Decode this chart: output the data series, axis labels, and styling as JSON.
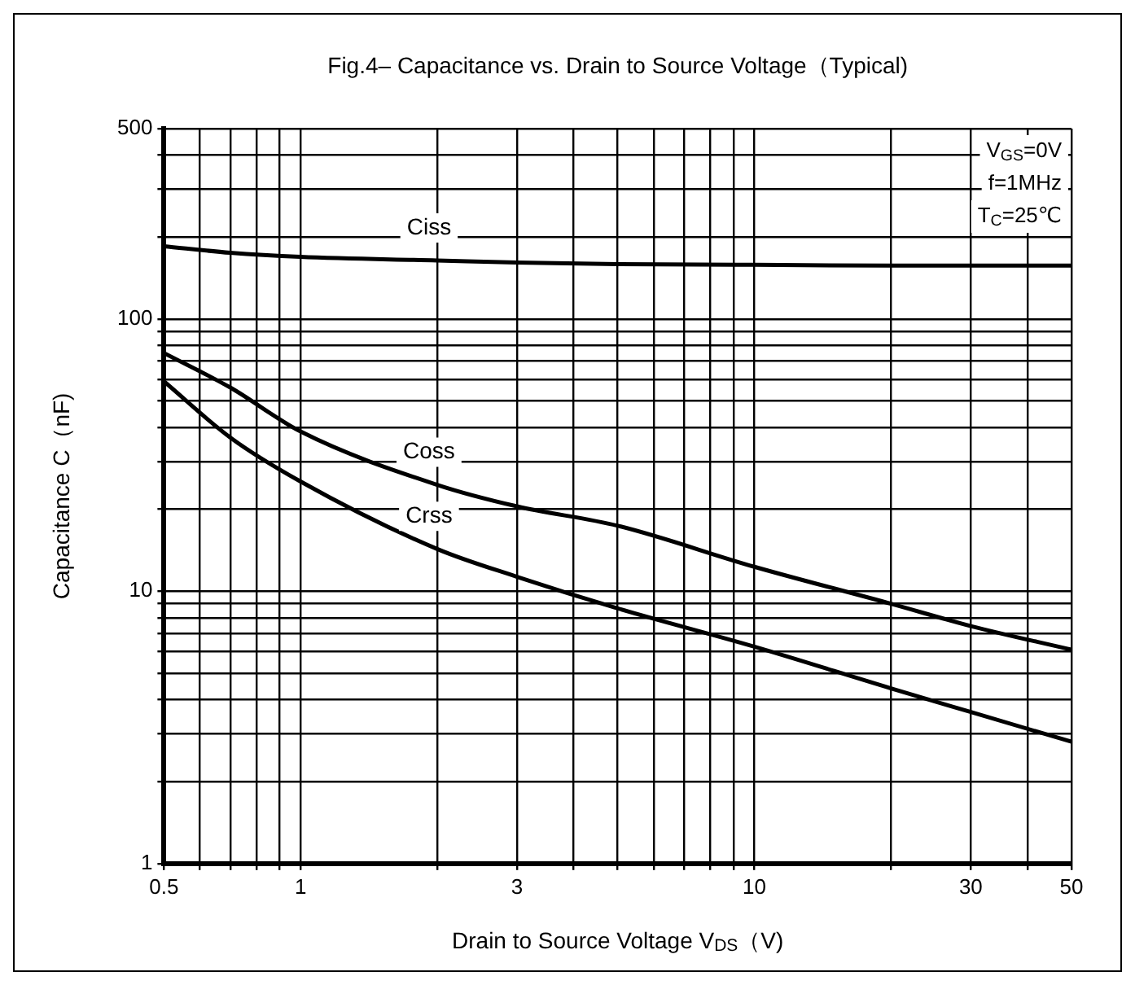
{
  "chart_data": {
    "type": "line",
    "title": "Fig.4– Capacitance vs. Drain to Source Voltage（Typical)",
    "xlabel": "Drain to Source Voltage V$_{DS}$（V)",
    "ylabel": "Capacitance C（nF)",
    "annotations": [
      "V$_{GS}$=0V",
      "f=1MHz",
      "T$_{C}$=25℃"
    ],
    "x": [
      0.5,
      0.7,
      1,
      2,
      3,
      5,
      10,
      20,
      30,
      50
    ],
    "series": [
      {
        "name": "Ciss",
        "color": "#000000",
        "values": [
          185,
          175,
          169,
          164,
          161,
          159,
          158,
          157,
          157,
          157
        ]
      },
      {
        "name": "Coss",
        "color": "#000000",
        "values": [
          75,
          56,
          38.6,
          24.6,
          20.5,
          17.4,
          12.3,
          9,
          7.45,
          6.1
        ]
      },
      {
        "name": "Crss",
        "color": "#000000",
        "values": [
          59,
          36.7,
          25.3,
          14.3,
          11.3,
          8.65,
          6.26,
          4.4,
          3.6,
          2.8
        ]
      }
    ],
    "log": "xy",
    "grid": true,
    "legend": false,
    "marker": "none",
    "line_style": "solid",
    "xlim": [
      0.5,
      50
    ],
    "xticks": [
      0.5,
      {
        "value": 0.6,
        "label": null
      },
      {
        "value": 0.7,
        "label": null
      },
      {
        "value": 0.8,
        "label": null
      },
      {
        "value": 0.9,
        "label": null
      },
      1,
      {
        "value": 2,
        "label": null
      },
      3,
      {
        "value": 4,
        "label": null
      },
      {
        "value": 5,
        "label": null
      },
      {
        "value": 6,
        "label": null
      },
      {
        "value": 7,
        "label": null
      },
      {
        "value": 8,
        "label": null
      },
      {
        "value": 9,
        "label": null
      },
      10,
      {
        "value": 20,
        "label": null
      },
      30,
      {
        "value": 40,
        "label": null
      },
      50
    ],
    "ylim": [
      1,
      500
    ],
    "yticks": [
      1,
      {
        "value": 2,
        "label": null
      },
      {
        "value": 3,
        "label": null
      },
      {
        "value": 4,
        "label": null
      },
      {
        "value": 5,
        "label": null
      },
      {
        "value": 6,
        "label": null
      },
      {
        "value": 7,
        "label": null
      },
      {
        "value": 8,
        "label": null
      },
      {
        "value": 9,
        "label": null
      },
      10,
      {
        "value": 20,
        "label": null
      },
      {
        "value": 30,
        "label": null
      },
      {
        "value": 40,
        "label": null
      },
      {
        "value": 50,
        "label": null
      },
      {
        "value": 60,
        "label": null
      },
      {
        "value": 70,
        "label": null
      },
      {
        "value": 80,
        "label": null
      },
      {
        "value": 90,
        "label": null
      },
      100,
      {
        "value": 200,
        "label": null
      },
      {
        "value": 300,
        "label": null
      },
      {
        "value": 400,
        "label": null
      },
      500
    ]
  }
}
